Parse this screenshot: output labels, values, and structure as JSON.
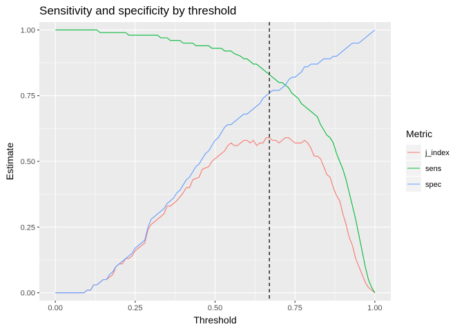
{
  "chart_data": {
    "type": "line",
    "title": "Sensitivity and specificity by threshold",
    "xlabel": "Threshold",
    "ylabel": "Estimate",
    "xlim": [
      -0.05,
      1.05
    ],
    "ylim": [
      -0.03,
      1.03
    ],
    "x_ticks": [
      0,
      0.25,
      0.5,
      0.75,
      1
    ],
    "x_tick_labels": [
      "0.00",
      "0.25",
      "0.50",
      "0.75",
      "1.00"
    ],
    "y_ticks": [
      0,
      0.25,
      0.5,
      0.75,
      1
    ],
    "y_tick_labels": [
      "0.00",
      "0.25",
      "0.50",
      "0.75",
      "1.00"
    ],
    "grid": true,
    "legend_title": "Metric",
    "legend_position": "right",
    "vline": {
      "x": 0.67,
      "style": "dashed",
      "color": "#333333"
    },
    "series": [
      {
        "name": "j_index",
        "color": "#F8766D",
        "points": [
          [
            0.0,
            0.0
          ],
          [
            0.09,
            0.0
          ],
          [
            0.1,
            0.01
          ],
          [
            0.11,
            0.01
          ],
          [
            0.12,
            0.03
          ],
          [
            0.13,
            0.03
          ],
          [
            0.14,
            0.04
          ],
          [
            0.15,
            0.05
          ],
          [
            0.16,
            0.05
          ],
          [
            0.17,
            0.06
          ],
          [
            0.18,
            0.07
          ],
          [
            0.19,
            0.1
          ],
          [
            0.2,
            0.11
          ],
          [
            0.21,
            0.11
          ],
          [
            0.22,
            0.13
          ],
          [
            0.23,
            0.13
          ],
          [
            0.24,
            0.14
          ],
          [
            0.25,
            0.16
          ],
          [
            0.27,
            0.18
          ],
          [
            0.28,
            0.19
          ],
          [
            0.29,
            0.24
          ],
          [
            0.3,
            0.26
          ],
          [
            0.31,
            0.27
          ],
          [
            0.32,
            0.28
          ],
          [
            0.33,
            0.29
          ],
          [
            0.34,
            0.3
          ],
          [
            0.35,
            0.33
          ],
          [
            0.36,
            0.33
          ],
          [
            0.37,
            0.34
          ],
          [
            0.38,
            0.35
          ],
          [
            0.4,
            0.38
          ],
          [
            0.41,
            0.4
          ],
          [
            0.42,
            0.4
          ],
          [
            0.43,
            0.43
          ],
          [
            0.45,
            0.44
          ],
          [
            0.46,
            0.47
          ],
          [
            0.48,
            0.48
          ],
          [
            0.49,
            0.5
          ],
          [
            0.5,
            0.51
          ],
          [
            0.52,
            0.53
          ],
          [
            0.53,
            0.54
          ],
          [
            0.54,
            0.56
          ],
          [
            0.55,
            0.57
          ],
          [
            0.56,
            0.56
          ],
          [
            0.57,
            0.56
          ],
          [
            0.58,
            0.57
          ],
          [
            0.59,
            0.58
          ],
          [
            0.6,
            0.58
          ],
          [
            0.61,
            0.57
          ],
          [
            0.62,
            0.58
          ],
          [
            0.63,
            0.56
          ],
          [
            0.64,
            0.57
          ],
          [
            0.65,
            0.57
          ],
          [
            0.66,
            0.59
          ],
          [
            0.67,
            0.59
          ],
          [
            0.68,
            0.58
          ],
          [
            0.69,
            0.58
          ],
          [
            0.7,
            0.57
          ],
          [
            0.71,
            0.58
          ],
          [
            0.72,
            0.59
          ],
          [
            0.73,
            0.59
          ],
          [
            0.74,
            0.58
          ],
          [
            0.75,
            0.57
          ],
          [
            0.76,
            0.57
          ],
          [
            0.77,
            0.57
          ],
          [
            0.78,
            0.58
          ],
          [
            0.79,
            0.57
          ],
          [
            0.8,
            0.55
          ],
          [
            0.81,
            0.52
          ],
          [
            0.82,
            0.52
          ],
          [
            0.83,
            0.51
          ],
          [
            0.84,
            0.48
          ],
          [
            0.85,
            0.45
          ],
          [
            0.86,
            0.44
          ],
          [
            0.87,
            0.4
          ],
          [
            0.88,
            0.37
          ],
          [
            0.89,
            0.35
          ],
          [
            0.9,
            0.3
          ],
          [
            0.91,
            0.26
          ],
          [
            0.92,
            0.21
          ],
          [
            0.93,
            0.18
          ],
          [
            0.94,
            0.13
          ],
          [
            0.95,
            0.1
          ],
          [
            0.96,
            0.07
          ],
          [
            0.97,
            0.04
          ],
          [
            0.98,
            0.02
          ],
          [
            0.99,
            0.01
          ],
          [
            1.0,
            0.0
          ]
        ]
      },
      {
        "name": "sens",
        "color": "#00BA38",
        "points": [
          [
            0.0,
            1.0
          ],
          [
            0.05,
            1.0
          ],
          [
            0.1,
            1.0
          ],
          [
            0.13,
            1.0
          ],
          [
            0.14,
            0.99
          ],
          [
            0.2,
            0.99
          ],
          [
            0.22,
            0.99
          ],
          [
            0.23,
            0.98
          ],
          [
            0.3,
            0.98
          ],
          [
            0.32,
            0.98
          ],
          [
            0.33,
            0.97
          ],
          [
            0.35,
            0.97
          ],
          [
            0.36,
            0.96
          ],
          [
            0.38,
            0.96
          ],
          [
            0.39,
            0.96
          ],
          [
            0.4,
            0.95
          ],
          [
            0.42,
            0.95
          ],
          [
            0.43,
            0.95
          ],
          [
            0.44,
            0.94
          ],
          [
            0.47,
            0.94
          ],
          [
            0.48,
            0.94
          ],
          [
            0.49,
            0.93
          ],
          [
            0.52,
            0.93
          ],
          [
            0.53,
            0.92
          ],
          [
            0.55,
            0.92
          ],
          [
            0.56,
            0.91
          ],
          [
            0.58,
            0.9
          ],
          [
            0.59,
            0.89
          ],
          [
            0.6,
            0.89
          ],
          [
            0.61,
            0.88
          ],
          [
            0.62,
            0.87
          ],
          [
            0.63,
            0.87
          ],
          [
            0.64,
            0.86
          ],
          [
            0.65,
            0.85
          ],
          [
            0.66,
            0.84
          ],
          [
            0.67,
            0.83
          ],
          [
            0.68,
            0.82
          ],
          [
            0.69,
            0.81
          ],
          [
            0.7,
            0.8
          ],
          [
            0.71,
            0.8
          ],
          [
            0.72,
            0.79
          ],
          [
            0.73,
            0.78
          ],
          [
            0.74,
            0.76
          ],
          [
            0.75,
            0.75
          ],
          [
            0.76,
            0.74
          ],
          [
            0.77,
            0.72
          ],
          [
            0.78,
            0.71
          ],
          [
            0.79,
            0.7
          ],
          [
            0.8,
            0.69
          ],
          [
            0.81,
            0.68
          ],
          [
            0.82,
            0.67
          ],
          [
            0.83,
            0.64
          ],
          [
            0.84,
            0.62
          ],
          [
            0.85,
            0.6
          ],
          [
            0.86,
            0.59
          ],
          [
            0.87,
            0.57
          ],
          [
            0.88,
            0.53
          ],
          [
            0.89,
            0.5
          ],
          [
            0.9,
            0.47
          ],
          [
            0.91,
            0.43
          ],
          [
            0.92,
            0.38
          ],
          [
            0.93,
            0.33
          ],
          [
            0.94,
            0.28
          ],
          [
            0.95,
            0.22
          ],
          [
            0.96,
            0.16
          ],
          [
            0.97,
            0.1
          ],
          [
            0.98,
            0.05
          ],
          [
            0.99,
            0.02
          ],
          [
            1.0,
            0.0
          ]
        ]
      },
      {
        "name": "spec",
        "color": "#619CFF",
        "points": [
          [
            0.0,
            0.0
          ],
          [
            0.09,
            0.0
          ],
          [
            0.1,
            0.01
          ],
          [
            0.11,
            0.01
          ],
          [
            0.12,
            0.03
          ],
          [
            0.13,
            0.03
          ],
          [
            0.14,
            0.04
          ],
          [
            0.15,
            0.05
          ],
          [
            0.16,
            0.05
          ],
          [
            0.17,
            0.07
          ],
          [
            0.18,
            0.08
          ],
          [
            0.19,
            0.1
          ],
          [
            0.2,
            0.11
          ],
          [
            0.21,
            0.12
          ],
          [
            0.22,
            0.13
          ],
          [
            0.23,
            0.14
          ],
          [
            0.24,
            0.15
          ],
          [
            0.25,
            0.17
          ],
          [
            0.27,
            0.19
          ],
          [
            0.28,
            0.2
          ],
          [
            0.29,
            0.25
          ],
          [
            0.3,
            0.28
          ],
          [
            0.31,
            0.29
          ],
          [
            0.32,
            0.3
          ],
          [
            0.33,
            0.31
          ],
          [
            0.34,
            0.32
          ],
          [
            0.35,
            0.34
          ],
          [
            0.36,
            0.35
          ],
          [
            0.37,
            0.36
          ],
          [
            0.38,
            0.38
          ],
          [
            0.39,
            0.39
          ],
          [
            0.4,
            0.41
          ],
          [
            0.41,
            0.43
          ],
          [
            0.42,
            0.44
          ],
          [
            0.43,
            0.46
          ],
          [
            0.44,
            0.48
          ],
          [
            0.45,
            0.49
          ],
          [
            0.46,
            0.51
          ],
          [
            0.47,
            0.53
          ],
          [
            0.48,
            0.54
          ],
          [
            0.49,
            0.56
          ],
          [
            0.5,
            0.58
          ],
          [
            0.51,
            0.59
          ],
          [
            0.52,
            0.61
          ],
          [
            0.53,
            0.63
          ],
          [
            0.54,
            0.64
          ],
          [
            0.55,
            0.64
          ],
          [
            0.56,
            0.65
          ],
          [
            0.57,
            0.66
          ],
          [
            0.58,
            0.67
          ],
          [
            0.59,
            0.68
          ],
          [
            0.6,
            0.68
          ],
          [
            0.61,
            0.69
          ],
          [
            0.62,
            0.7
          ],
          [
            0.63,
            0.71
          ],
          [
            0.64,
            0.72
          ],
          [
            0.65,
            0.74
          ],
          [
            0.66,
            0.75
          ],
          [
            0.67,
            0.76
          ],
          [
            0.68,
            0.77
          ],
          [
            0.69,
            0.77
          ],
          [
            0.7,
            0.77
          ],
          [
            0.71,
            0.78
          ],
          [
            0.72,
            0.79
          ],
          [
            0.73,
            0.81
          ],
          [
            0.74,
            0.82
          ],
          [
            0.75,
            0.82
          ],
          [
            0.76,
            0.83
          ],
          [
            0.77,
            0.84
          ],
          [
            0.78,
            0.86
          ],
          [
            0.79,
            0.86
          ],
          [
            0.8,
            0.87
          ],
          [
            0.81,
            0.87
          ],
          [
            0.82,
            0.87
          ],
          [
            0.83,
            0.88
          ],
          [
            0.84,
            0.89
          ],
          [
            0.85,
            0.89
          ],
          [
            0.86,
            0.89
          ],
          [
            0.87,
            0.9
          ],
          [
            0.88,
            0.9
          ],
          [
            0.89,
            0.91
          ],
          [
            0.9,
            0.92
          ],
          [
            0.91,
            0.93
          ],
          [
            0.92,
            0.94
          ],
          [
            0.93,
            0.95
          ],
          [
            0.94,
            0.95
          ],
          [
            0.95,
            0.95
          ],
          [
            0.96,
            0.96
          ],
          [
            0.97,
            0.97
          ],
          [
            0.98,
            0.98
          ],
          [
            0.99,
            0.99
          ],
          [
            1.0,
            1.0
          ]
        ]
      }
    ]
  }
}
